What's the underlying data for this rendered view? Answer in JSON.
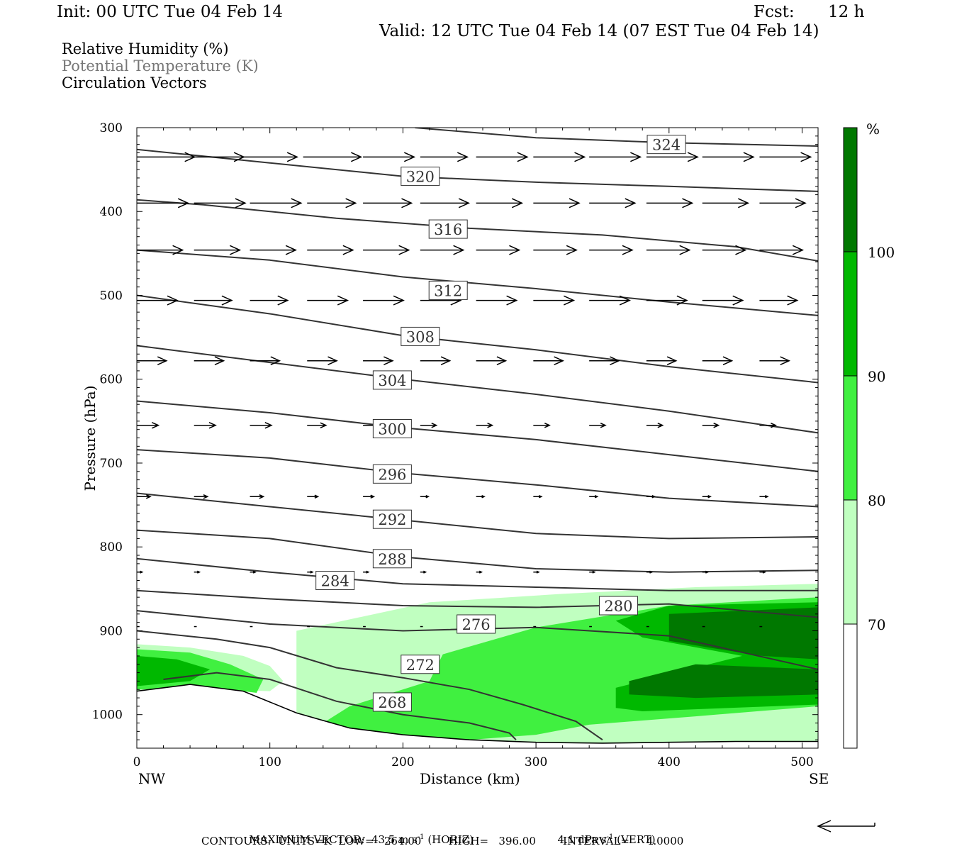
{
  "header": {
    "init": "Init: 00 UTC Tue 04 Feb 14",
    "fcst_label": "Fcst:",
    "fcst_value": "12 h",
    "valid": "Valid: 12 UTC Tue 04 Feb 14 (07 EST Tue 04 Feb 14)"
  },
  "legend_lines": {
    "rh": "Relative Humidity (%)",
    "theta": "Potential Temperature (K)",
    "vectors": "Circulation Vectors"
  },
  "colors": {
    "rh70": "#c0ffc0",
    "rh80": "#40f040",
    "rh90": "#00b800",
    "rh100": "#007800",
    "contour": "#333333",
    "theta_legend": "#777777"
  },
  "chart_data": {
    "type": "cross-section",
    "xlabel": "Distance (km)",
    "ylabel": "Pressure (hPa)",
    "xlim": [
      0,
      512
    ],
    "ylim": [
      1040,
      300
    ],
    "x_ticks": [
      "0",
      "100",
      "200",
      "300",
      "400",
      "500"
    ],
    "y_ticks": [
      "300",
      "400",
      "500",
      "600",
      "700",
      "800",
      "900",
      "1000"
    ],
    "endpoint_labels": {
      "left": "NW",
      "right": "SE"
    },
    "colorbar": {
      "unit": "%",
      "levels": [
        "70",
        "80",
        "90",
        "100"
      ]
    },
    "theta_contours": [
      {
        "label": "324",
        "x": [
          209,
          300,
          400,
          512
        ],
        "p": [
          300,
          312,
          318,
          322
        ],
        "lx": 398,
        "lp": 320
      },
      {
        "label": "320",
        "x": [
          0,
          100,
          200,
          300,
          400,
          512
        ],
        "p": [
          326,
          342,
          358,
          365,
          370,
          376
        ],
        "lx": 213,
        "lp": 358
      },
      {
        "label": "316",
        "x": [
          0,
          50,
          150,
          250,
          350,
          450,
          512
        ],
        "p": [
          386,
          392,
          408,
          420,
          428,
          442,
          459
        ],
        "lx": 234,
        "lp": 421
      },
      {
        "label": "312",
        "x": [
          0,
          100,
          200,
          300,
          400,
          512
        ],
        "p": [
          446,
          458,
          478,
          492,
          508,
          524
        ],
        "lx": 234,
        "lp": 494
      },
      {
        "label": "308",
        "x": [
          0,
          100,
          200,
          300,
          400,
          512
        ],
        "p": [
          500,
          522,
          548,
          565,
          585,
          604
        ],
        "lx": 213,
        "lp": 549
      },
      {
        "label": "304",
        "x": [
          0,
          100,
          200,
          300,
          400,
          512
        ],
        "p": [
          560,
          580,
          600,
          618,
          638,
          664
        ],
        "lx": 192,
        "lp": 601
      },
      {
        "label": "300",
        "x": [
          0,
          100,
          200,
          300,
          400,
          512
        ],
        "p": [
          626,
          640,
          658,
          672,
          690,
          710
        ],
        "lx": 192,
        "lp": 659
      },
      {
        "label": "296",
        "x": [
          0,
          100,
          200,
          300,
          400,
          512
        ],
        "p": [
          684,
          694,
          712,
          726,
          742,
          752
        ],
        "lx": 192,
        "lp": 713
      },
      {
        "label": "292",
        "x": [
          0,
          100,
          200,
          300,
          400,
          512
        ],
        "p": [
          736,
          752,
          768,
          784,
          790,
          788
        ],
        "lx": 192,
        "lp": 767
      },
      {
        "label": "288",
        "x": [
          0,
          100,
          200,
          300,
          400,
          512
        ],
        "p": [
          780,
          790,
          812,
          826,
          830,
          828
        ],
        "lx": 192,
        "lp": 814
      },
      {
        "label": "284",
        "x": [
          0,
          100,
          200,
          300,
          400,
          512
        ],
        "p": [
          814,
          830,
          844,
          848,
          852,
          852
        ],
        "lx": 149,
        "lp": 840
      },
      {
        "label": "280",
        "x": [
          0,
          100,
          200,
          300,
          400,
          512
        ],
        "p": [
          852,
          862,
          870,
          872,
          868,
          884
        ],
        "lx": 362,
        "lp": 870
      },
      {
        "label": "276",
        "x": [
          0,
          100,
          200,
          300,
          400,
          512
        ],
        "p": [
          876,
          892,
          900,
          896,
          906,
          946
        ],
        "lx": 255,
        "lp": 892
      },
      {
        "label": "272",
        "x": [
          0,
          60,
          100,
          150,
          200,
          250,
          290,
          330,
          350
        ],
        "p": [
          900,
          910,
          920,
          944,
          956,
          970,
          988,
          1008,
          1030
        ],
        "lx": 213,
        "lp": 940
      },
      {
        "label": "268",
        "x": [
          20,
          60,
          100,
          150,
          200,
          250,
          280,
          285
        ],
        "p": [
          958,
          950,
          958,
          984,
          1000,
          1010,
          1022,
          1030
        ],
        "lx": 192,
        "lp": 985
      }
    ],
    "ground_pressure_profile": {
      "x": [
        0,
        40,
        80,
        120,
        160,
        200,
        250,
        300,
        350,
        400,
        450,
        512
      ],
      "p": [
        972,
        964,
        972,
        998,
        1016,
        1024,
        1030,
        1033,
        1034,
        1033,
        1032,
        1032
      ]
    },
    "rh_regions": [
      {
        "level": "70",
        "polygon": [
          [
            120,
            900
          ],
          [
            220,
            866
          ],
          [
            320,
            856
          ],
          [
            420,
            848
          ],
          [
            512,
            844
          ],
          [
            512,
            1032
          ],
          [
            300,
            1034
          ],
          [
            200,
            1030
          ],
          [
            120,
            1000
          ]
        ]
      },
      {
        "level": "70",
        "polygon": [
          [
            0,
            916
          ],
          [
            40,
            920
          ],
          [
            80,
            930
          ],
          [
            100,
            942
          ],
          [
            110,
            960
          ],
          [
            100,
            972
          ],
          [
            60,
            970
          ],
          [
            0,
            972
          ]
        ]
      },
      {
        "level": "80",
        "polygon": [
          [
            230,
            928
          ],
          [
            300,
            896
          ],
          [
            400,
            870
          ],
          [
            512,
            860
          ],
          [
            512,
            990
          ],
          [
            420,
            1002
          ],
          [
            340,
            1012
          ],
          [
            300,
            1024
          ],
          [
            250,
            1030
          ],
          [
            180,
            1024
          ],
          [
            140,
            1010
          ],
          [
            160,
            990
          ],
          [
            220,
            960
          ]
        ]
      },
      {
        "level": "80",
        "polygon": [
          [
            0,
            922
          ],
          [
            40,
            926
          ],
          [
            70,
            940
          ],
          [
            95,
            958
          ],
          [
            90,
            974
          ],
          [
            60,
            968
          ],
          [
            0,
            970
          ]
        ]
      },
      {
        "level": "90",
        "polygon": [
          [
            360,
            888
          ],
          [
            400,
            870
          ],
          [
            512,
            866
          ],
          [
            512,
            988
          ],
          [
            380,
            996
          ],
          [
            360,
            992
          ],
          [
            360,
            968
          ],
          [
            410,
            948
          ],
          [
            455,
            930
          ],
          [
            380,
            908
          ]
        ]
      },
      {
        "level": "90",
        "polygon": [
          [
            0,
            930
          ],
          [
            30,
            934
          ],
          [
            55,
            946
          ],
          [
            40,
            960
          ],
          [
            0,
            966
          ]
        ]
      },
      {
        "level": "100",
        "polygon": [
          [
            400,
            880
          ],
          [
            512,
            872
          ],
          [
            512,
            934
          ],
          [
            470,
            930
          ],
          [
            430,
            920
          ],
          [
            400,
            912
          ]
        ]
      },
      {
        "level": "100",
        "polygon": [
          [
            370,
            960
          ],
          [
            420,
            940
          ],
          [
            512,
            946
          ],
          [
            512,
            976
          ],
          [
            420,
            980
          ],
          [
            370,
            976
          ]
        ]
      }
    ],
    "vector_rows": [
      {
        "p": 335,
        "x": [
          0,
          40,
          80,
          125,
          170,
          213,
          255,
          298,
          340,
          383,
          425,
          468
        ],
        "u": [
          43,
          40,
          40,
          43,
          38,
          35,
          38,
          38,
          38,
          38,
          38,
          38
        ],
        "w": [
          0,
          0,
          0,
          0,
          0,
          0,
          0,
          0,
          0,
          0,
          0,
          0
        ]
      },
      {
        "p": 390,
        "x": [
          0,
          43,
          85,
          128,
          170,
          213,
          255,
          298,
          340,
          383,
          425,
          468
        ],
        "u": [
          38,
          38,
          38,
          36,
          36,
          36,
          34,
          34,
          34,
          34,
          34,
          34
        ],
        "w": [
          0,
          0,
          0,
          0,
          0,
          0,
          0,
          0,
          0,
          0,
          0,
          0
        ]
      },
      {
        "p": 446,
        "x": [
          0,
          43,
          85,
          128,
          170,
          213,
          255,
          298,
          340,
          383,
          425,
          468
        ],
        "u": [
          34,
          34,
          34,
          34,
          34,
          32,
          32,
          32,
          32,
          32,
          32,
          32
        ],
        "w": [
          0,
          0,
          0,
          0,
          0,
          0,
          0,
          0,
          0,
          0,
          0,
          0
        ]
      },
      {
        "p": 506,
        "x": [
          0,
          43,
          85,
          128,
          170,
          213,
          255,
          298,
          340,
          383,
          425,
          468
        ],
        "u": [
          30,
          28,
          28,
          30,
          30,
          30,
          30,
          30,
          30,
          30,
          30,
          28
        ],
        "w": [
          0,
          0,
          0,
          0,
          0,
          0,
          0,
          0,
          0,
          0,
          0,
          0
        ]
      },
      {
        "p": 578,
        "x": [
          0,
          43,
          85,
          128,
          170,
          213,
          255,
          298,
          340,
          383,
          425,
          468
        ],
        "u": [
          22,
          22,
          22,
          22,
          22,
          22,
          22,
          22,
          22,
          22,
          22,
          22
        ],
        "w": [
          0,
          0,
          0,
          0,
          0,
          0,
          0,
          0,
          0,
          0,
          0,
          0
        ]
      },
      {
        "p": 655,
        "x": [
          0,
          43,
          85,
          128,
          170,
          213,
          255,
          298,
          340,
          383,
          425,
          468
        ],
        "u": [
          16,
          16,
          16,
          14,
          12,
          12,
          12,
          12,
          12,
          12,
          12,
          12
        ],
        "w": [
          0,
          0,
          0,
          0,
          0,
          0,
          0,
          0,
          0,
          0,
          0,
          0
        ]
      },
      {
        "p": 740,
        "x": [
          0,
          43,
          85,
          128,
          170,
          213,
          255,
          298,
          340,
          383,
          425,
          468
        ],
        "u": [
          10,
          10,
          10,
          8,
          8,
          6,
          6,
          6,
          6,
          6,
          6,
          6
        ],
        "w": [
          0,
          0,
          0,
          0,
          0,
          0,
          0,
          0,
          0,
          0,
          0,
          0
        ]
      },
      {
        "p": 830,
        "x": [
          0,
          43,
          85,
          128,
          170,
          213,
          255,
          298,
          340,
          383,
          425,
          468
        ],
        "u": [
          4,
          4,
          4,
          4,
          4,
          4,
          4,
          4,
          4,
          4,
          4,
          4
        ],
        "w": [
          0,
          0,
          0,
          0,
          0,
          0,
          0,
          0,
          0,
          0,
          0,
          0
        ]
      },
      {
        "p": 895,
        "x": [
          0,
          43,
          85,
          128,
          170,
          213,
          255,
          298,
          340,
          383,
          425,
          468
        ],
        "u": [
          2,
          2,
          2,
          2,
          2,
          2,
          2,
          2,
          2,
          2,
          2,
          2
        ],
        "w": [
          0,
          0,
          0,
          0,
          0,
          0,
          0,
          0,
          0,
          0,
          0,
          0
        ]
      }
    ]
  },
  "footer": {
    "max_vector_label": "MAXIMUM VECTOR:",
    "horiz_value": "43.5 m s",
    "horiz_exp": "-1",
    "horiz_tag": " (HORIZ)",
    "vert_value": "4.1 dPa s",
    "vert_exp": "-1",
    "vert_tag": " (VERT)",
    "contours_line": "CONTOURS:  UNITS=K  LOW=   264.00        HIGH=   396.00        INTERVAL=     4.0000"
  }
}
